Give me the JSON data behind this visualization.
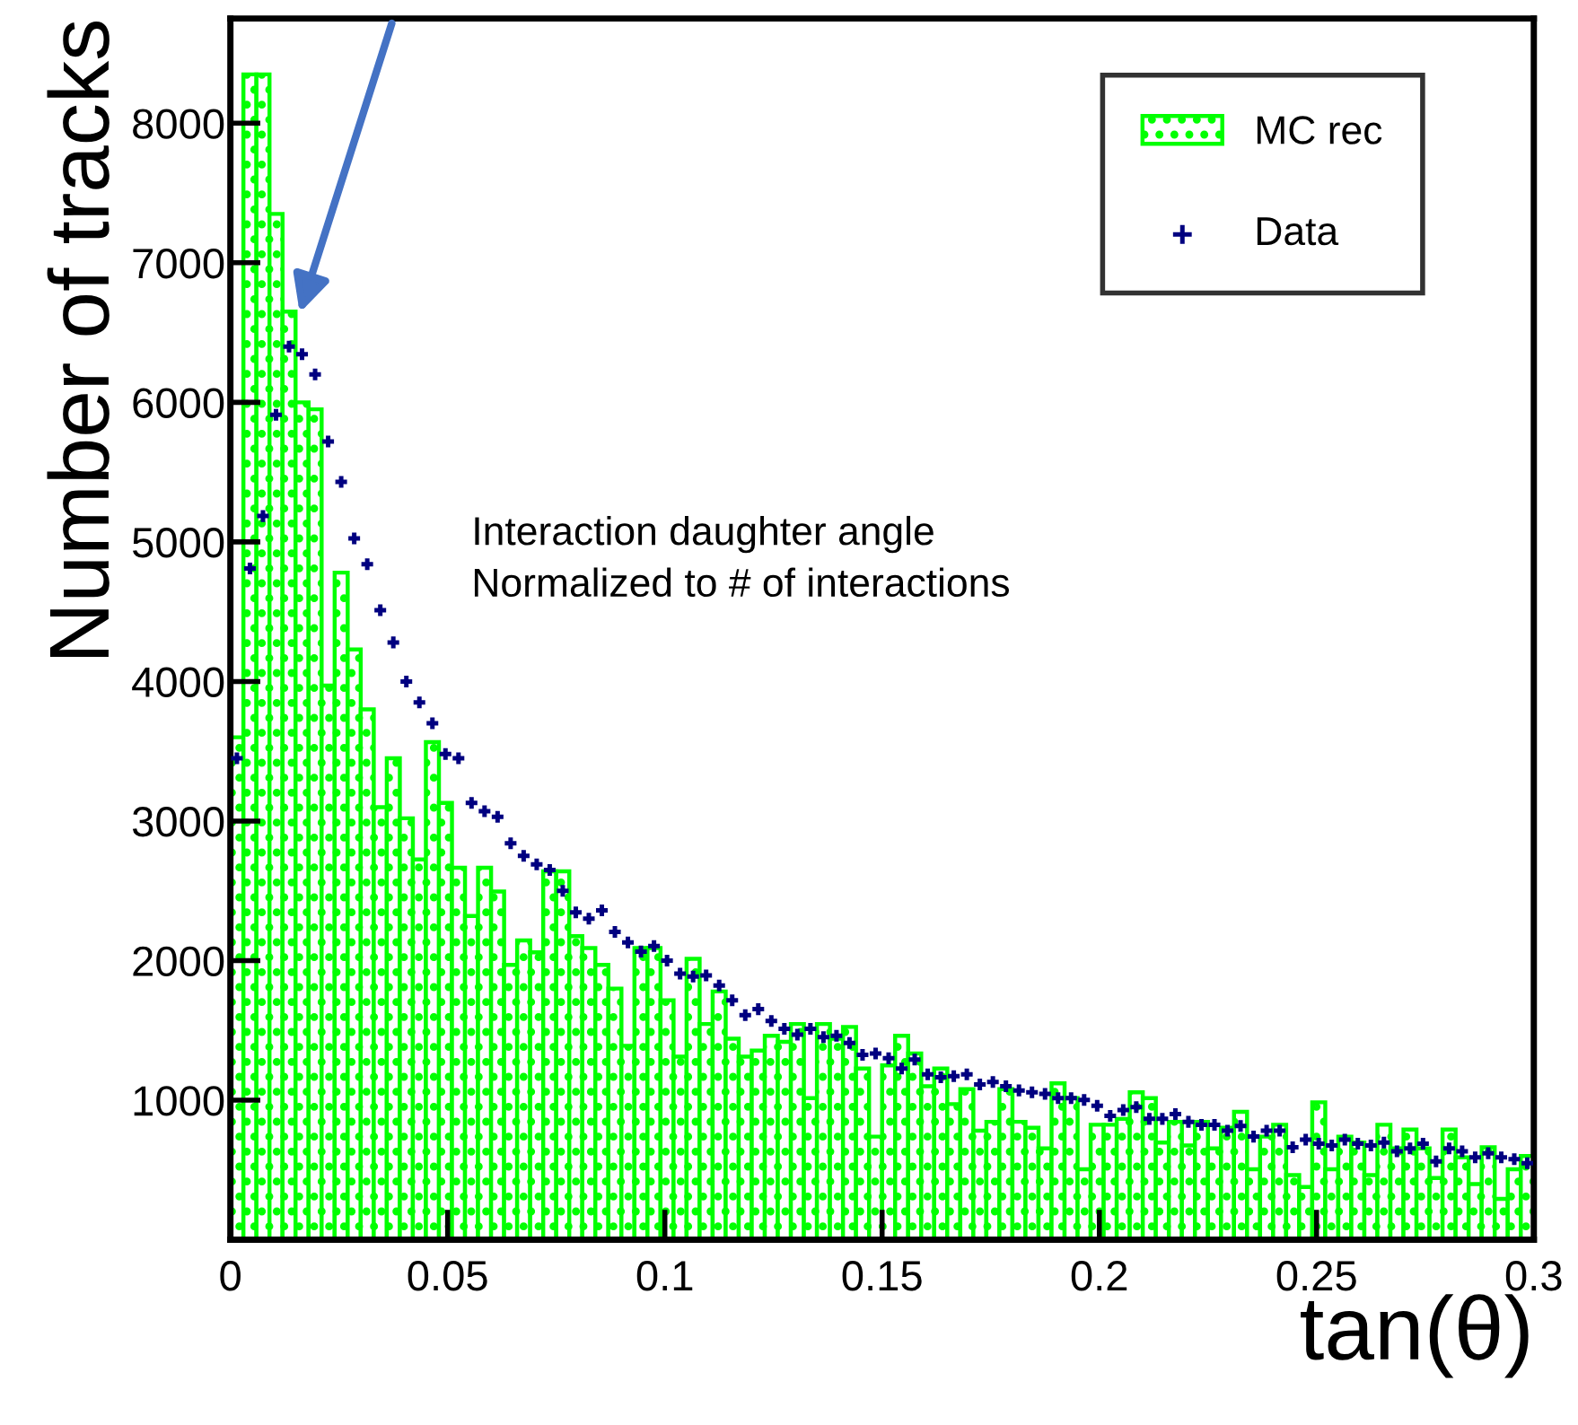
{
  "chart_data": {
    "type": "histogram",
    "xlabel": "tan(θ)",
    "ylabel": "Number of tracks",
    "annotations": [
      "Interaction daughter angle\nNormalized to # of interactions"
    ],
    "bins": [
      0,
      0.003,
      0.006,
      0.009,
      0.012,
      0.015,
      0.018,
      0.021,
      0.024,
      0.027,
      0.03,
      0.033,
      0.036,
      0.039,
      0.042,
      0.045,
      0.048,
      0.051,
      0.054,
      0.057,
      0.06,
      0.063,
      0.066,
      0.069,
      0.072,
      0.075,
      0.078,
      0.081,
      0.084,
      0.087,
      0.09,
      0.093,
      0.096,
      0.099,
      0.102,
      0.105,
      0.108,
      0.111,
      0.114,
      0.117,
      0.12,
      0.123,
      0.126,
      0.129,
      0.132,
      0.135,
      0.138,
      0.141,
      0.144,
      0.147,
      0.15,
      0.153,
      0.156,
      0.159,
      0.162,
      0.165,
      0.168,
      0.171,
      0.174,
      0.177,
      0.18,
      0.183,
      0.186,
      0.189,
      0.192,
      0.195,
      0.198,
      0.201,
      0.204,
      0.207,
      0.21,
      0.213,
      0.216,
      0.219,
      0.222,
      0.225,
      0.228,
      0.231,
      0.234,
      0.237,
      0.24,
      0.243,
      0.246,
      0.249,
      0.252,
      0.255,
      0.258,
      0.261,
      0.264,
      0.267,
      0.27,
      0.273,
      0.276,
      0.279,
      0.282,
      0.285,
      0.288,
      0.291,
      0.294,
      0.297,
      0.3
    ],
    "series": [
      {
        "name": "MC rec",
        "color": "#00ff00",
        "values": [
          3600,
          8350,
          8350,
          7350,
          6650,
          6000,
          5950,
          3970,
          4780,
          4230,
          3800,
          3100,
          3450,
          3020,
          2725,
          3565,
          3130,
          2665,
          2320,
          2665,
          2495,
          1970,
          2145,
          2060,
          2640,
          2640,
          2175,
          2090,
          1970,
          1800,
          1390,
          2090,
          2090,
          1715,
          1312,
          2013,
          1546,
          1779,
          1440,
          1312,
          1355,
          1461,
          1418,
          1546,
          1015,
          1546,
          1440,
          1525,
          1227,
          739,
          1249,
          1461,
          1334,
          1100,
          1227,
          972,
          1079,
          781,
          845,
          1079,
          845,
          803,
          654,
          1121,
          1015,
          505,
          824,
          824,
          866,
          1057,
          1015,
          696,
          845,
          675,
          845,
          654,
          803,
          917,
          505,
          739,
          824,
          463,
          378,
          985,
          505,
          739,
          696,
          463,
          824,
          654,
          790,
          654,
          442,
          790,
          590,
          399,
          662,
          293,
          505,
          600
        ]
      },
      {
        "name": "Data",
        "type": "scatter",
        "color": "#000080",
        "marker": "cross",
        "x": [
          0.0015,
          0.0045,
          0.0075,
          0.0105,
          0.0135,
          0.0165,
          0.0195,
          0.0225,
          0.0255,
          0.0285,
          0.0315,
          0.0345,
          0.0375,
          0.0405,
          0.0435,
          0.0465,
          0.0495,
          0.0525,
          0.0555,
          0.0585,
          0.0615,
          0.0645,
          0.0675,
          0.0705,
          0.0735,
          0.0765,
          0.0795,
          0.0825,
          0.0855,
          0.0885,
          0.0915,
          0.0945,
          0.0975,
          0.1005,
          0.1035,
          0.1065,
          0.1095,
          0.1125,
          0.1155,
          0.1185,
          0.1215,
          0.1245,
          0.1275,
          0.1305,
          0.1335,
          0.1365,
          0.1395,
          0.1425,
          0.1455,
          0.1485,
          0.1515,
          0.1545,
          0.1575,
          0.1605,
          0.1635,
          0.1665,
          0.1695,
          0.1725,
          0.1755,
          0.1785,
          0.1815,
          0.1845,
          0.1875,
          0.1905,
          0.1935,
          0.1965,
          0.1995,
          0.2025,
          0.2055,
          0.2085,
          0.2115,
          0.2145,
          0.2175,
          0.2205,
          0.2235,
          0.2265,
          0.2295,
          0.2325,
          0.2355,
          0.2385,
          0.2415,
          0.2445,
          0.2475,
          0.2505,
          0.2535,
          0.2565,
          0.2595,
          0.2625,
          0.2655,
          0.2685,
          0.2715,
          0.2745,
          0.2775,
          0.2805,
          0.2835,
          0.2865,
          0.2895,
          0.2925,
          0.2955,
          0.2985
        ],
        "values": [
          3450,
          4810,
          5185,
          5910,
          6400,
          6345,
          6200,
          5720,
          5430,
          5025,
          4840,
          4510,
          4280,
          4000,
          3850,
          3700,
          3480,
          3450,
          3130,
          3070,
          3030,
          2840,
          2750,
          2690,
          2650,
          2500,
          2345,
          2300,
          2360,
          2205,
          2130,
          2065,
          2105,
          2000,
          1907,
          1886,
          1894,
          1822,
          1716,
          1609,
          1652,
          1567,
          1512,
          1469,
          1512,
          1452,
          1461,
          1410,
          1325,
          1334,
          1300,
          1227,
          1291,
          1185,
          1164,
          1172,
          1185,
          1113,
          1130,
          1100,
          1070,
          1057,
          1045,
          1015,
          1015,
          1002,
          960,
          888,
          930,
          951,
          866,
          866,
          900,
          845,
          823,
          823,
          781,
          815,
          739,
          781,
          781,
          662,
          717,
          688,
          675,
          717,
          688,
          675,
          696,
          633,
          654,
          688,
          561,
          654,
          633,
          590,
          620,
          590,
          578,
          548
        ]
      }
    ],
    "xlim": [
      0,
      0.3
    ],
    "ylim": [
      0,
      8750
    ],
    "xticks": [
      0,
      0.05,
      0.1,
      0.15,
      0.2,
      0.25,
      0.3
    ],
    "yticks": [
      1000,
      2000,
      3000,
      4000,
      5000,
      6000,
      7000,
      8000
    ],
    "grid": false,
    "legend": "top right"
  }
}
